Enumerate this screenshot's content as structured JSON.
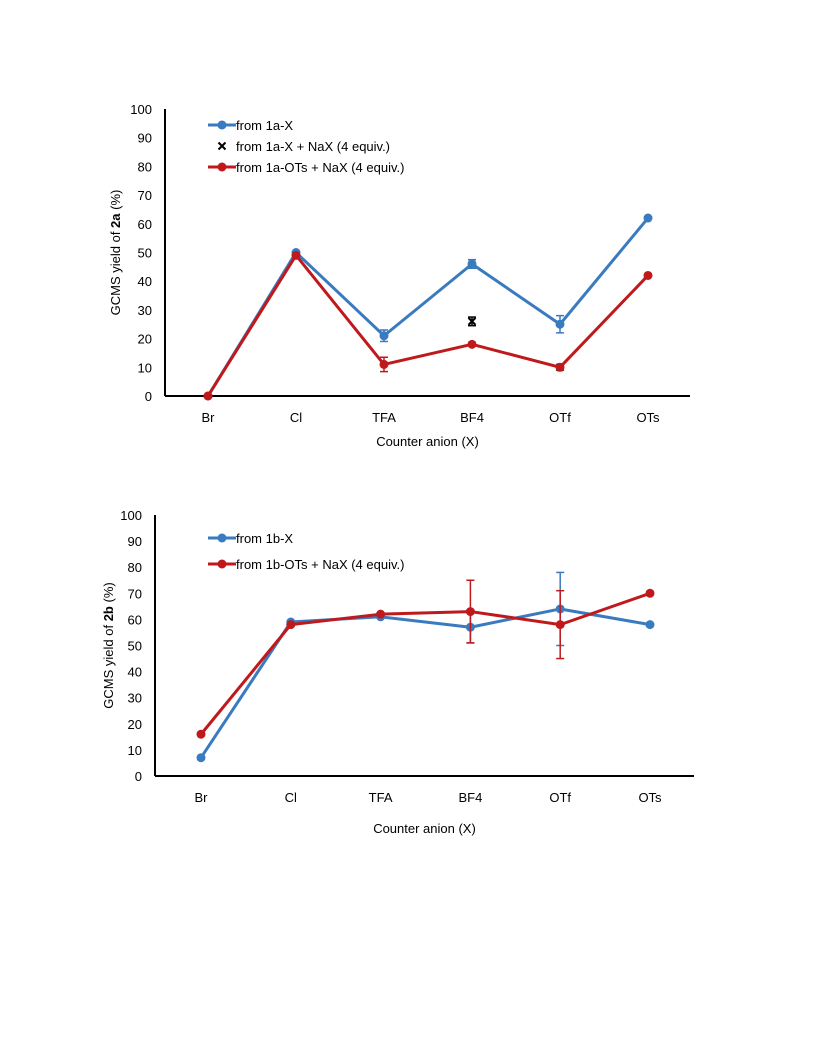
{
  "chart_data": [
    {
      "type": "line",
      "title": "",
      "xlabel": "Counter anion (X)",
      "ylabel_prefix": "GCMS yield of ",
      "ylabel_bold": "2a",
      "ylabel_suffix": " (%)",
      "ylim": [
        0,
        100
      ],
      "yticks": [
        0,
        10,
        20,
        30,
        40,
        50,
        60,
        70,
        80,
        90,
        100
      ],
      "categories": [
        "Br",
        "Cl",
        "TFA",
        "BF4",
        "OTf",
        "OTs"
      ],
      "legend_position": "top-left",
      "series": [
        {
          "name": "from 1a-X",
          "color": "#3a7abf",
          "marker": "circle",
          "line": true,
          "values": [
            0,
            50,
            21,
            46,
            25,
            62
          ],
          "errors": [
            0,
            0,
            2,
            1.5,
            3,
            0
          ]
        },
        {
          "name": "from 1a-X + NaX (4 equiv.)",
          "color": "#000000",
          "marker": "x",
          "line": false,
          "values": [
            null,
            null,
            null,
            26,
            10,
            null
          ],
          "errors": [
            0,
            0,
            0,
            1.5,
            0,
            0
          ]
        },
        {
          "name": "from 1a-OTs + NaX (4 equiv.)",
          "color": "#c0191c",
          "marker": "circle",
          "line": true,
          "values": [
            0,
            49,
            11,
            18,
            10,
            42
          ],
          "errors": [
            0,
            0,
            2.5,
            0,
            0,
            0
          ]
        }
      ]
    },
    {
      "type": "line",
      "title": "",
      "xlabel": "Counter anion (X)",
      "ylabel_prefix": "GCMS yield of ",
      "ylabel_bold": "2b",
      "ylabel_suffix": " (%)",
      "ylim": [
        0,
        100
      ],
      "yticks": [
        0,
        10,
        20,
        30,
        40,
        50,
        60,
        70,
        80,
        90,
        100
      ],
      "categories": [
        "Br",
        "Cl",
        "TFA",
        "BF4",
        "OTf",
        "OTs"
      ],
      "legend_position": "top-left",
      "series": [
        {
          "name": "from 1b-X",
          "color": "#3a7abf",
          "marker": "circle",
          "line": true,
          "values": [
            7,
            59,
            61,
            57,
            64,
            58
          ],
          "errors": [
            0,
            0,
            0,
            6,
            14,
            0
          ]
        },
        {
          "name": "from 1b-OTs + NaX (4 equiv.)",
          "color": "#c0191c",
          "marker": "circle",
          "line": true,
          "values": [
            16,
            58,
            62,
            63,
            58,
            70
          ],
          "errors": [
            0,
            0,
            0,
            12,
            13,
            0
          ]
        }
      ]
    }
  ]
}
